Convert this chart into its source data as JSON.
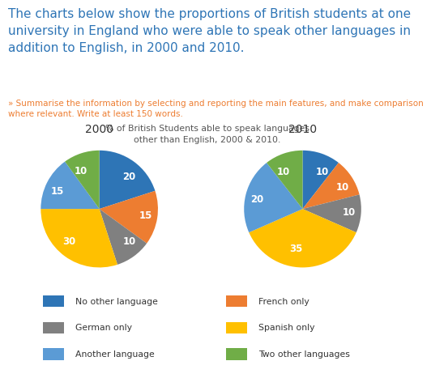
{
  "title_main": "The charts below show the proportions of British students at one\nuniversity in England who were able to speak other languages in\naddition to English, in 2000 and 2010.",
  "subtitle": "» Summarise the information by selecting and reporting the main features, and make comparison\nwhere relevant. Write at least 150 words.",
  "chart_title": "% of British Students able to speak languages\nother than English, 2000 & 2010.",
  "labels": [
    "No other language",
    "French only",
    "German only",
    "Spanish only",
    "Another language",
    "Two other languages"
  ],
  "colors": [
    "#2e75b6",
    "#ed7d31",
    "#808080",
    "#ffc000",
    "#5b9bd5",
    "#70ad47"
  ],
  "values_2000": [
    20,
    15,
    10,
    30,
    15,
    10
  ],
  "values_2010": [
    10,
    10,
    10,
    35,
    20,
    10
  ],
  "year_2000": "2000",
  "year_2010": "2010",
  "startangle": 90,
  "background_color": "#ffffff",
  "title_color": "#2e75b6",
  "subtitle_color": "#ed7d31",
  "chart_title_color": "#555555",
  "label_fontsize": 8.5,
  "title_fontsize": 11,
  "subtitle_fontsize": 7.5,
  "chart_title_fontsize": 7.8,
  "year_fontsize": 10
}
